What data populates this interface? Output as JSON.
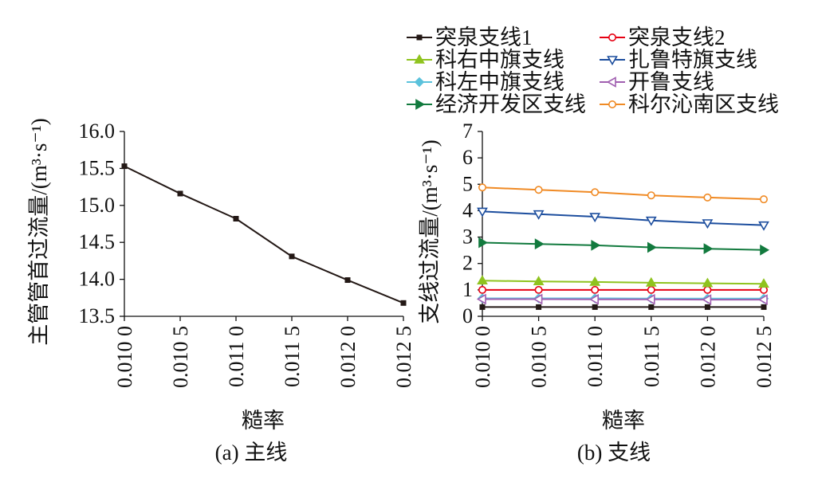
{
  "chart_data": [
    {
      "type": "line",
      "caption": "(a) 主线",
      "xlabel": "糙率",
      "ylabel": "主管管首过流量/(m³·s⁻¹)",
      "categories": [
        "0.010 0",
        "0.010 5",
        "0.011 0",
        "0.011 5",
        "0.012 0",
        "0.012 5"
      ],
      "ylim": [
        13.5,
        16.0
      ],
      "yticks": [
        "13.5",
        "14.0",
        "14.5",
        "15.0",
        "15.5",
        "16.0"
      ],
      "grid": false,
      "series": [
        {
          "name": "",
          "color": "#231815",
          "marker": "square",
          "values": [
            15.53,
            15.16,
            14.82,
            14.31,
            13.99,
            13.68
          ]
        }
      ]
    },
    {
      "type": "line",
      "caption": "(b) 支线",
      "xlabel": "糙率",
      "ylabel": "支线过流量/(m³·s⁻¹)",
      "categories": [
        "0.010 0",
        "0.010 5",
        "0.011 0",
        "0.011 5",
        "0.012 0",
        "0.012 5"
      ],
      "ylim": [
        0,
        7
      ],
      "yticks": [
        "0",
        "1",
        "2",
        "3",
        "4",
        "5",
        "6",
        "7"
      ],
      "grid": false,
      "legend_position": "top",
      "series": [
        {
          "name": "突泉支线1",
          "color": "#231815",
          "marker": "square",
          "values": [
            0.35,
            0.35,
            0.35,
            0.35,
            0.35,
            0.35
          ]
        },
        {
          "name": "突泉支线2",
          "color": "#e60012",
          "marker": "circle-open",
          "values": [
            1.0,
            1.0,
            1.0,
            1.0,
            1.0,
            1.0
          ]
        },
        {
          "name": "科右中旗支线",
          "color": "#8fc31f",
          "marker": "triangle-up",
          "values": [
            1.35,
            1.32,
            1.3,
            1.27,
            1.25,
            1.23
          ]
        },
        {
          "name": "扎鲁特旗支线",
          "color": "#1d4e9e",
          "marker": "triangle-down-open",
          "values": [
            3.97,
            3.87,
            3.77,
            3.63,
            3.53,
            3.45
          ]
        },
        {
          "name": "科左中旗支线",
          "color": "#5bc2dc",
          "marker": "diamond",
          "values": [
            0.68,
            0.68,
            0.68,
            0.67,
            0.67,
            0.67
          ]
        },
        {
          "name": "开鲁支线",
          "color": "#a05fb0",
          "marker": "triangle-left-open",
          "values": [
            0.65,
            0.65,
            0.64,
            0.64,
            0.63,
            0.63
          ]
        },
        {
          "name": "经济开发区支线",
          "color": "#127a3e",
          "marker": "triangle-right",
          "values": [
            2.79,
            2.74,
            2.69,
            2.61,
            2.56,
            2.51
          ]
        },
        {
          "name": "科尔沁南区支线",
          "color": "#f08a24",
          "marker": "circle-open",
          "values": [
            4.88,
            4.79,
            4.7,
            4.58,
            4.5,
            4.43
          ]
        }
      ]
    }
  ]
}
